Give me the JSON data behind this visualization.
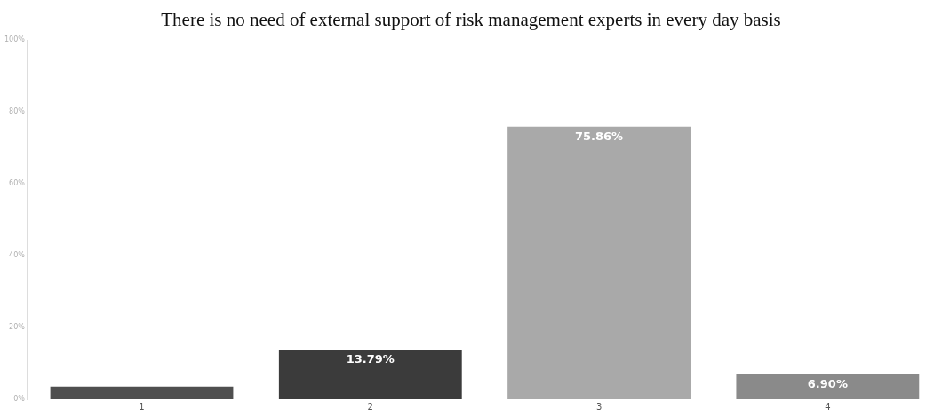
{
  "chart_data": {
    "type": "bar",
    "title": "There is no need of external support of risk management experts in every day basis",
    "categories": [
      "1",
      "2",
      "3",
      "4"
    ],
    "values": [
      3.5,
      13.79,
      75.86,
      6.9
    ],
    "colors": [
      "#4f4f4f",
      "#3b3b3b",
      "#a9a9a9",
      "#8a8a8a"
    ],
    "value_labels": [
      null,
      "13.79%",
      "75.86%",
      "6.90%"
    ],
    "ylim": [
      0,
      100
    ],
    "yticks": [
      {
        "value": 0,
        "label": "0%"
      },
      {
        "value": 20,
        "label": "20%"
      },
      {
        "value": 40,
        "label": "40%"
      },
      {
        "value": 60,
        "label": "60%"
      },
      {
        "value": 80,
        "label": "80%"
      },
      {
        "value": 100,
        "label": "100%"
      }
    ],
    "grid": false,
    "legend": false
  }
}
